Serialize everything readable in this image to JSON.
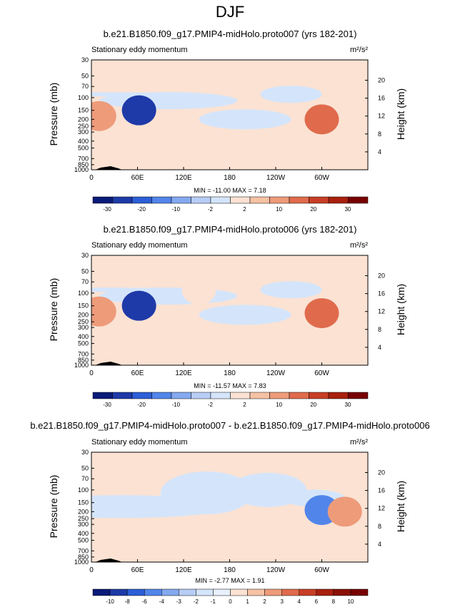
{
  "figure": {
    "title": "DJF"
  },
  "colors": {
    "neg": [
      "#0a1a78",
      "#1e3aa8",
      "#2c5ed6",
      "#5285ea",
      "#84a9f0",
      "#b7cdf5",
      "#d4e5fb"
    ],
    "pos": [
      "#fbe2d3",
      "#f5c2a4",
      "#ee9b7a",
      "#e06b4c",
      "#c83e26",
      "#a8200e",
      "#780000"
    ],
    "topo": "#000000"
  },
  "chart_data": [
    {
      "type": "heatmap",
      "title": "b.e21.B1850.f09_g17.PMIP4-midHolo.proto007 (yrs 182-201)",
      "left_label": "Stationary eddy momentum",
      "units": "m²/s²",
      "ylabel": "Pressure (mb)",
      "ylabel_right": "Height (km)",
      "xticks": [
        "0",
        "60E",
        "120E",
        "180",
        "120W",
        "60W"
      ],
      "yticks": [
        "30",
        "50",
        "70",
        "100",
        "150",
        "200",
        "250",
        "300",
        "400",
        "500",
        "700",
        "850",
        "1000"
      ],
      "yticks_right": [
        "20",
        "16",
        "12",
        "8",
        "4"
      ],
      "stats": "MIN = -11.00   MAX =   7.18",
      "colorbar_labels": [
        "-30",
        "-20",
        "-10",
        "-2",
        "2",
        "10",
        "20",
        "30"
      ],
      "features": [
        {
          "lon": 62,
          "p": 150,
          "value": -11.0
        },
        {
          "lon": 10,
          "p": 180,
          "value": 4.5
        },
        {
          "lon": 300,
          "p": 200,
          "value": 6.5
        },
        {
          "lon": 350,
          "p": 100,
          "value": 2.0
        }
      ]
    },
    {
      "type": "heatmap",
      "title": "b.e21.B1850.f09_g17.PMIP4-midHolo.proto006 (yrs 182-201)",
      "left_label": "Stationary eddy momentum",
      "units": "m²/s²",
      "ylabel": "Pressure (mb)",
      "ylabel_right": "Height (km)",
      "xticks": [
        "0",
        "60E",
        "120E",
        "180",
        "120W",
        "60W"
      ],
      "yticks": [
        "30",
        "50",
        "70",
        "100",
        "150",
        "200",
        "250",
        "300",
        "400",
        "500",
        "700",
        "850",
        "1000"
      ],
      "yticks_right": [
        "20",
        "16",
        "12",
        "8",
        "4"
      ],
      "stats": "MIN = -11.57   MAX =   7.83",
      "colorbar_labels": [
        "-30",
        "-20",
        "-10",
        "-2",
        "2",
        "10",
        "20",
        "30"
      ],
      "features": [
        {
          "lon": 62,
          "p": 150,
          "value": -11.57
        },
        {
          "lon": 10,
          "p": 180,
          "value": 4.5
        },
        {
          "lon": 300,
          "p": 190,
          "value": 7.8
        },
        {
          "lon": 140,
          "p": 90,
          "value": 1.5
        }
      ]
    },
    {
      "type": "heatmap",
      "title": "b.e21.B1850.f09_g17.PMIP4-midHolo.proto007 - b.e21.B1850.f09_g17.PMIP4-midHolo.proto006",
      "left_label": "Stationary eddy momentum",
      "units": "m²/s²",
      "ylabel": "Pressure (mb)",
      "ylabel_right": "Height (km)",
      "xticks": [
        "0",
        "60E",
        "120E",
        "180",
        "120W",
        "60W"
      ],
      "yticks": [
        "30",
        "50",
        "70",
        "100",
        "150",
        "200",
        "250",
        "300",
        "400",
        "500",
        "700",
        "850",
        "1000"
      ],
      "yticks_right": [
        "20",
        "16",
        "12",
        "8",
        "4"
      ],
      "stats": "MIN = -2.77   MAX =   1.91",
      "colorbar_labels": [
        "-10",
        "-8",
        "-6",
        "-4",
        "-3",
        "-2",
        "-1",
        "0",
        "1",
        "2",
        "3",
        "4",
        "6",
        "8",
        "10"
      ],
      "features": [
        {
          "lon": 300,
          "p": 190,
          "value": -2.77
        },
        {
          "lon": 330,
          "p": 200,
          "value": 1.91
        }
      ]
    }
  ]
}
